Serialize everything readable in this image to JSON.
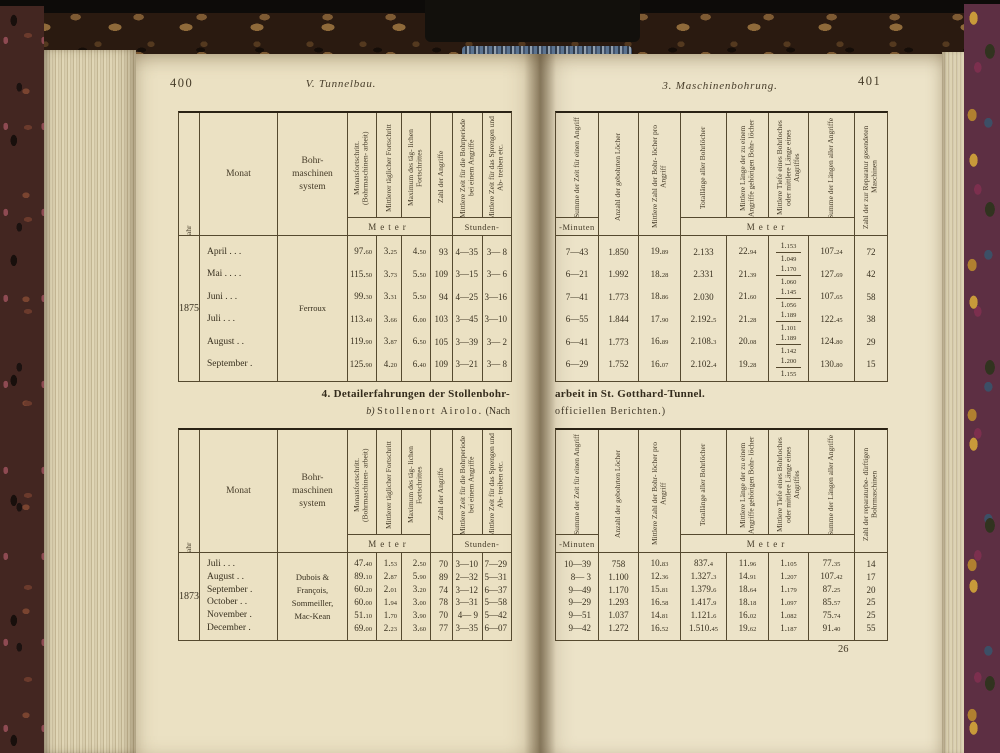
{
  "palette": {
    "page": "#ebe1c3",
    "ink": "#38301f",
    "rule": "#55492f",
    "cover_marble": "#432621",
    "endpaper_marble": "#5d2f43",
    "headband_blue": "#5b7390"
  },
  "left_page": {
    "page_number": "400",
    "running_head": "V. Tunnelbau.",
    "col_headers": {
      "jahr": "Jahr",
      "monat": "Monat",
      "system": "Bohr-\nmaschinen\nsystem",
      "f1": "Monatsfortschritt. (Bohrmaschinen- arbeit)",
      "f2": "Mittlerer täglicher Fortschritt",
      "f3": "Maximum des täg- lichen Fortschrittes",
      "angriffe": "Zahl der Angriffe",
      "z1": "Mittlere Zeit für die Bohrperiode bei einem Angriffe",
      "z2": "Mittlere Zeit für das Sprengen und Ab- treiben etc.",
      "sub_meter": "Meter",
      "sub_stunden": "Stunden-"
    },
    "table_top": {
      "jahr": "1875",
      "system": "Ferroux",
      "rows": [
        {
          "monat": "April . . .",
          "f1": "97.60",
          "f2": "3.25",
          "f3": "4.50",
          "ang": "93",
          "z1": "4—35",
          "z2": "3— 8"
        },
        {
          "monat": "Mai . . . .",
          "f1": "115.50",
          "f2": "3.73",
          "f3": "5.50",
          "ang": "109",
          "z1": "3—15",
          "z2": "3— 6"
        },
        {
          "monat": "Juni . . .",
          "f1": "99.30",
          "f2": "3.31",
          "f3": "5.50",
          "ang": "94",
          "z1": "4—25",
          "z2": "3—16"
        },
        {
          "monat": "Juli . . .",
          "f1": "113.40",
          "f2": "3.66",
          "f3": "6.00",
          "ang": "103",
          "z1": "3—45",
          "z2": "3—10"
        },
        {
          "monat": "August . .",
          "f1": "119.90",
          "f2": "3.87",
          "f3": "6.50",
          "ang": "105",
          "z1": "3—39",
          "z2": "3— 2"
        },
        {
          "monat": "September .",
          "f1": "125.90",
          "f2": "4.20",
          "f3": "6.40",
          "ang": "109",
          "z1": "3—21",
          "z2": "3— 8"
        }
      ]
    },
    "heading_line1": "4. Detailerfahrungen der Stollenbohr-",
    "heading2_prefix": "b)",
    "heading2_main": "Stollenort Airolo.",
    "heading2_suffix": "(Nach",
    "table_bottom": {
      "jahr": "1873",
      "system": "Dubois &\nFrançois,\nSommeiller,\nMac-Kean",
      "rows": [
        {
          "monat": "Juli . . .",
          "f1": "47.40",
          "f2": "1.53",
          "f3": "2.50",
          "ang": "70",
          "z1": "3—10",
          "z2": "7—29"
        },
        {
          "monat": "August . .",
          "f1": "89.10",
          "f2": "2.87",
          "f3": "5.90",
          "ang": "89",
          "z1": "2—32",
          "z2": "5—31"
        },
        {
          "monat": "September .",
          "f1": "60.20",
          "f2": "2.01",
          "f3": "3.20",
          "ang": "74",
          "z1": "3—12",
          "z2": "6—37"
        },
        {
          "monat": "October . .",
          "f1": "60.00",
          "f2": "1.94",
          "f3": "3.00",
          "ang": "78",
          "z1": "3—31",
          "z2": "5—58"
        },
        {
          "monat": "November .",
          "f1": "51.10",
          "f2": "1.70",
          "f3": "3.90",
          "ang": "70",
          "z1": "4— 9",
          "z2": "5—42"
        },
        {
          "monat": "December .",
          "f1": "69.00",
          "f2": "2.23",
          "f3": "3.60",
          "ang": "77",
          "z1": "3—35",
          "z2": "6—07"
        }
      ]
    }
  },
  "right_page": {
    "page_number": "401",
    "running_head": "3. Maschinenbohrung.",
    "col_headers": {
      "t1": "Summe der Zeit für einen Angriff",
      "t2": "Anzahl der gebohrten Löcher",
      "t3": "Mittlere Zahl der Bohr- löcher pro Angriff",
      "t4": "Totallänge aller Bohrlöcher",
      "t5": "Mittlere Länge der zu einem Angriffe gehörigen Bohr- löcher",
      "t6": "Mittlere Tiefe eines Bohrloches oder mittlere Länge eines Angriffes",
      "t7": "Summe der Längen aller Angriffe",
      "t8_top": "Zahl der zur Reparatur gesendeten Maschinen",
      "t8_bottom": "Zahl der reparaturbe- dürftigen Bohrmaschinen",
      "sub_minuten": "-Minuten",
      "sub_meter": "Meter"
    },
    "table_top": {
      "rows": [
        {
          "t1": "7—43",
          "t2": "1.850",
          "t3": "19.89",
          "t4": "2.133",
          "t5": "22.94",
          "t6a": "1.153",
          "t6b": "1.049",
          "t7": "107.24",
          "t8": "72"
        },
        {
          "t1": "6—21",
          "t2": "1.992",
          "t3": "18.28",
          "t4": "2.331",
          "t5": "21.39",
          "t6a": "1.170",
          "t6b": "1.060",
          "t7": "127.69",
          "t8": "42"
        },
        {
          "t1": "7—41",
          "t2": "1.773",
          "t3": "18.86",
          "t4": "2.030",
          "t5": "21.60",
          "t6a": "1.145",
          "t6b": "1.056",
          "t7": "107.65",
          "t8": "58"
        },
        {
          "t1": "6—55",
          "t2": "1.844",
          "t3": "17.90",
          "t4": "2.192.5",
          "t5": "21.28",
          "t6a": "1.189",
          "t6b": "1.101",
          "t7": "122.45",
          "t8": "38"
        },
        {
          "t1": "6—41",
          "t2": "1.773",
          "t3": "16.89",
          "t4": "2.108.3",
          "t5": "20.08",
          "t6a": "1.189",
          "t6b": "1.142",
          "t7": "124.80",
          "t8": "29"
        },
        {
          "t1": "6—29",
          "t2": "1.752",
          "t3": "16.07",
          "t4": "2.102.4",
          "t5": "19.28",
          "t6a": "1.200",
          "t6b": "1.155",
          "t7": "130.80",
          "t8": "15"
        }
      ]
    },
    "heading_line1": "arbeit in St. Gotthard-Tunnel.",
    "heading_line2": "officiellen Berichten.)",
    "table_bottom": {
      "rows": [
        {
          "t1": "10—39",
          "t2": "758",
          "t3": "10.83",
          "t4": "837.4",
          "t5": "11.96",
          "t6": "1.105",
          "t7": "77.35",
          "t8": "14"
        },
        {
          "t1": "8— 3",
          "t2": "1.100",
          "t3": "12.36",
          "t4": "1.327.3",
          "t5": "14.91",
          "t6": "1.207",
          "t7": "107.42",
          "t8": "17"
        },
        {
          "t1": "9—49",
          "t2": "1.170",
          "t3": "15.81",
          "t4": "1.379.6",
          "t5": "18.64",
          "t6": "1.179",
          "t7": "87.25",
          "t8": "20"
        },
        {
          "t1": "9—29",
          "t2": "1.293",
          "t3": "16.58",
          "t4": "1.417.9",
          "t5": "18.18",
          "t6": "1.097",
          "t7": "85.57",
          "t8": "25"
        },
        {
          "t1": "9—51",
          "t2": "1.037",
          "t3": "14.81",
          "t4": "1.121.6",
          "t5": "16.02",
          "t6": "1.082",
          "t7": "75.74",
          "t8": "25"
        },
        {
          "t1": "9—42",
          "t2": "1.272",
          "t3": "16.52",
          "t4": "1.510.45",
          "t5": "19.62",
          "t6": "1.187",
          "t7": "91.40",
          "t8": "55"
        }
      ]
    },
    "signature": "26"
  }
}
